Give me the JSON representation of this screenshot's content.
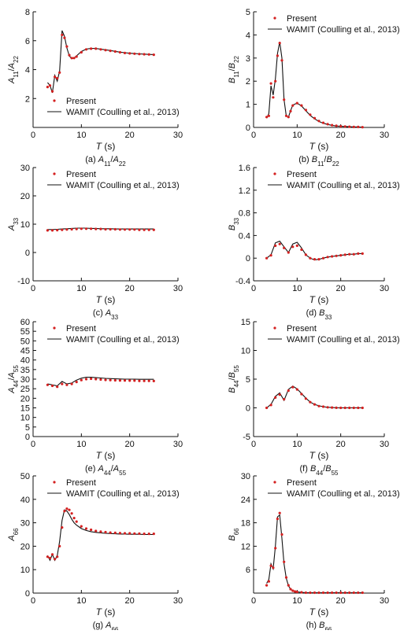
{
  "figure": {
    "legend": {
      "present": "Present",
      "wamit": "WAMIT (Coulling et al., 2013)"
    },
    "colors": {
      "present": "#d42020",
      "wamit": "#111111",
      "axis": "#111111"
    }
  },
  "chart_data": [
    {
      "id": "a",
      "type": "line",
      "caption": {
        "prefix": "(a) ",
        "sym": "A",
        "sub": "11",
        "sep": "/",
        "sym2": "A",
        "sub2": "22"
      },
      "ylabel": {
        "sym": "A",
        "sub": "11",
        "sep": "/",
        "sym2": "A",
        "sub2": "22"
      },
      "xlabel": {
        "sym": "T",
        "unit": " (s)"
      },
      "xlim": [
        0,
        30
      ],
      "ylim": [
        0,
        8
      ],
      "xticks": [
        0,
        10,
        20,
        30
      ],
      "yticks": [
        2,
        4,
        6,
        8
      ],
      "legend_position": "bottom",
      "x": [
        3,
        3.5,
        4,
        4.5,
        5,
        5.5,
        6,
        6.5,
        7,
        7.5,
        8,
        8.5,
        9,
        10,
        11,
        12,
        13,
        14,
        15,
        16,
        17,
        18,
        19,
        20,
        21,
        22,
        23,
        24,
        25
      ],
      "series": [
        {
          "name": "Present",
          "style": "markers",
          "values": [
            2.8,
            2.9,
            2.5,
            3.5,
            3.4,
            3.8,
            6.4,
            6.2,
            5.6,
            5.0,
            4.8,
            4.8,
            4.9,
            5.2,
            5.4,
            5.45,
            5.45,
            5.4,
            5.35,
            5.3,
            5.25,
            5.2,
            5.15,
            5.12,
            5.1,
            5.08,
            5.06,
            5.05,
            5.03
          ]
        },
        {
          "name": "WAMIT (Coulling et al., 2013)",
          "style": "line",
          "values": [
            3.1,
            2.9,
            2.4,
            3.6,
            3.2,
            3.9,
            6.7,
            6.3,
            5.5,
            4.95,
            4.75,
            4.8,
            4.95,
            5.25,
            5.42,
            5.47,
            5.46,
            5.42,
            5.37,
            5.32,
            5.26,
            5.21,
            5.17,
            5.13,
            5.11,
            5.09,
            5.07,
            5.05,
            5.04
          ]
        }
      ]
    },
    {
      "id": "b",
      "type": "line",
      "caption": {
        "prefix": "(b) ",
        "sym": "B",
        "sub": "11",
        "sep": "/",
        "sym2": "B",
        "sub2": "22"
      },
      "ylabel": {
        "sym": "B",
        "sub": "11",
        "sep": "/",
        "sym2": "B",
        "sub2": "22"
      },
      "xlabel": {
        "sym": "T",
        "unit": " (s)"
      },
      "xlim": [
        0,
        30
      ],
      "ylim": [
        0,
        5
      ],
      "xticks": [
        0,
        10,
        20,
        30
      ],
      "yticks": [
        0,
        1,
        2,
        3,
        4,
        5
      ],
      "legend_position": "top",
      "x": [
        3,
        3.5,
        4,
        4.5,
        5,
        5.5,
        6,
        6.5,
        7,
        7.5,
        8,
        8.5,
        9,
        10,
        11,
        12,
        13,
        14,
        15,
        16,
        17,
        18,
        19,
        20,
        21,
        22,
        23,
        24,
        25
      ],
      "series": [
        {
          "name": "Present",
          "style": "markers",
          "values": [
            0.45,
            0.5,
            1.9,
            1.3,
            2.0,
            3.1,
            3.65,
            2.9,
            1.2,
            0.5,
            0.45,
            0.7,
            0.95,
            1.05,
            0.95,
            0.75,
            0.55,
            0.4,
            0.28,
            0.2,
            0.14,
            0.1,
            0.07,
            0.05,
            0.04,
            0.03,
            0.02,
            0.02,
            0.01
          ]
        },
        {
          "name": "WAMIT (Coulling et al., 2013)",
          "style": "line",
          "values": [
            0.4,
            0.6,
            1.8,
            1.4,
            2.1,
            3.2,
            3.7,
            3.0,
            1.2,
            0.5,
            0.45,
            0.72,
            0.97,
            1.05,
            0.93,
            0.72,
            0.52,
            0.37,
            0.26,
            0.18,
            0.13,
            0.09,
            0.06,
            0.05,
            0.04,
            0.03,
            0.02,
            0.02,
            0.01
          ]
        }
      ]
    },
    {
      "id": "c",
      "type": "line",
      "caption": {
        "prefix": "(c) ",
        "sym": "A",
        "sub": "33",
        "sep": "",
        "sym2": "",
        "sub2": ""
      },
      "ylabel": {
        "sym": "A",
        "sub": "33",
        "sep": "",
        "sym2": "",
        "sub2": ""
      },
      "xlabel": {
        "sym": "T",
        "unit": " (s)"
      },
      "xlim": [
        0,
        30
      ],
      "ylim": [
        -10,
        30
      ],
      "xticks": [
        0,
        10,
        20,
        30
      ],
      "yticks": [
        -10,
        0,
        10,
        20,
        30
      ],
      "legend_position": "top",
      "x": [
        3,
        4,
        5,
        6,
        7,
        8,
        9,
        10,
        11,
        12,
        13,
        14,
        15,
        16,
        17,
        18,
        19,
        20,
        21,
        22,
        23,
        24,
        25
      ],
      "series": [
        {
          "name": "Present",
          "style": "markers",
          "values": [
            7.8,
            7.8,
            7.9,
            8.0,
            8.1,
            8.2,
            8.3,
            8.4,
            8.4,
            8.4,
            8.3,
            8.3,
            8.2,
            8.2,
            8.2,
            8.1,
            8.1,
            8.1,
            8.1,
            8.0,
            8.0,
            8.0,
            8.0
          ]
        },
        {
          "name": "WAMIT (Coulling et al., 2013)",
          "style": "line",
          "values": [
            8.1,
            8.1,
            8.2,
            8.3,
            8.4,
            8.5,
            8.6,
            8.6,
            8.6,
            8.5,
            8.5,
            8.4,
            8.4,
            8.4,
            8.3,
            8.3,
            8.3,
            8.3,
            8.3,
            8.3,
            8.3,
            8.3,
            8.3
          ]
        }
      ]
    },
    {
      "id": "d",
      "type": "line",
      "caption": {
        "prefix": "(d) ",
        "sym": "B",
        "sub": "33",
        "sep": "",
        "sym2": "",
        "sub2": ""
      },
      "ylabel": {
        "sym": "B",
        "sub": "33",
        "sep": "",
        "sym2": "",
        "sub2": ""
      },
      "xlabel": {
        "sym": "T",
        "unit": " (s)"
      },
      "xlim": [
        0,
        30
      ],
      "ylim": [
        -0.4,
        1.6
      ],
      "xticks": [
        0,
        10,
        20,
        30
      ],
      "yticks": [
        -0.4,
        0.0,
        0.4,
        0.8,
        1.2,
        1.6
      ],
      "legend_position": "top",
      "x": [
        3,
        4,
        5,
        6,
        7,
        8,
        9,
        10,
        11,
        12,
        13,
        14,
        15,
        16,
        17,
        18,
        19,
        20,
        21,
        22,
        23,
        24,
        25
      ],
      "series": [
        {
          "name": "Present",
          "style": "markers",
          "values": [
            0.0,
            0.05,
            0.22,
            0.25,
            0.18,
            0.1,
            0.2,
            0.22,
            0.15,
            0.06,
            0.0,
            -0.02,
            -0.02,
            0.0,
            0.02,
            0.03,
            0.04,
            0.05,
            0.06,
            0.07,
            0.07,
            0.08,
            0.08
          ]
        },
        {
          "name": "WAMIT (Coulling et al., 2013)",
          "style": "line",
          "values": [
            0.0,
            0.06,
            0.27,
            0.3,
            0.2,
            0.1,
            0.25,
            0.28,
            0.18,
            0.06,
            0.0,
            -0.03,
            -0.02,
            0.0,
            0.02,
            0.03,
            0.04,
            0.05,
            0.06,
            0.07,
            0.07,
            0.08,
            0.08
          ]
        }
      ]
    },
    {
      "id": "e",
      "type": "line",
      "caption": {
        "prefix": "(e) ",
        "sym": "A",
        "sub": "44",
        "sep": "/",
        "sym2": "A",
        "sub2": "55"
      },
      "ylabel": {
        "sym": "A",
        "sub": "44",
        "sep": "/",
        "sym2": "A",
        "sub2": "55"
      },
      "xlabel": {
        "sym": "T",
        "unit": " (s)"
      },
      "xlim": [
        0,
        30
      ],
      "ylim": [
        0,
        60
      ],
      "xticks": [
        0,
        10,
        20,
        30
      ],
      "yticks": [
        0,
        5,
        10,
        15,
        20,
        25,
        30,
        35,
        40,
        45,
        50,
        55,
        60
      ],
      "legend_position": "top",
      "x": [
        3,
        4,
        5,
        6,
        7,
        8,
        9,
        10,
        11,
        12,
        13,
        14,
        15,
        16,
        17,
        18,
        19,
        20,
        21,
        22,
        23,
        24,
        25
      ],
      "series": [
        {
          "name": "Present",
          "style": "markers",
          "values": [
            27.0,
            26.5,
            26.0,
            27.5,
            27.0,
            27.5,
            28.5,
            29.5,
            30.0,
            30.2,
            30.0,
            29.8,
            29.6,
            29.5,
            29.4,
            29.3,
            29.3,
            29.2,
            29.2,
            29.1,
            29.1,
            29.1,
            29.0
          ]
        },
        {
          "name": "WAMIT (Coulling et al., 2013)",
          "style": "line",
          "values": [
            27.5,
            27.0,
            26.5,
            28.8,
            27.5,
            28.0,
            29.5,
            30.5,
            31.0,
            31.0,
            30.8,
            30.6,
            30.4,
            30.3,
            30.2,
            30.1,
            30.0,
            30.0,
            30.0,
            29.9,
            29.9,
            29.9,
            29.9
          ]
        }
      ]
    },
    {
      "id": "f",
      "type": "line",
      "caption": {
        "prefix": "(f) ",
        "sym": "B",
        "sub": "44",
        "sep": "/",
        "sym2": "B",
        "sub2": "55"
      },
      "ylabel": {
        "sym": "B",
        "sub": "44",
        "sep": "/",
        "sym2": "B",
        "sub2": "55"
      },
      "xlabel": {
        "sym": "T",
        "unit": " (s)"
      },
      "xlim": [
        0,
        30
      ],
      "ylim": [
        -5,
        15
      ],
      "xticks": [
        0,
        10,
        20,
        30
      ],
      "yticks": [
        -5,
        0,
        5,
        10,
        15
      ],
      "legend_position": "top",
      "x": [
        3,
        4,
        5,
        6,
        7,
        8,
        9,
        10,
        11,
        12,
        13,
        14,
        15,
        16,
        17,
        18,
        19,
        20,
        21,
        22,
        23,
        24,
        25
      ],
      "series": [
        {
          "name": "Present",
          "style": "markers",
          "values": [
            0.0,
            0.5,
            1.8,
            2.3,
            1.5,
            3.0,
            3.6,
            3.2,
            2.4,
            1.6,
            1.0,
            0.6,
            0.3,
            0.2,
            0.1,
            0.05,
            0.02,
            0.0,
            0.0,
            0.0,
            0.0,
            0.0,
            0.0
          ]
        },
        {
          "name": "WAMIT (Coulling et al., 2013)",
          "style": "line",
          "values": [
            0.0,
            0.6,
            2.0,
            2.6,
            1.3,
            3.2,
            3.8,
            3.3,
            2.5,
            1.7,
            1.0,
            0.6,
            0.35,
            0.2,
            0.1,
            0.05,
            0.02,
            0.0,
            0.0,
            0.0,
            0.0,
            0.0,
            0.0
          ]
        }
      ]
    },
    {
      "id": "g",
      "type": "line",
      "caption": {
        "prefix": "(g) ",
        "sym": "A",
        "sub": "66",
        "sep": "",
        "sym2": "",
        "sub2": ""
      },
      "ylabel": {
        "sym": "A",
        "sub": "66",
        "sep": "",
        "sym2": "",
        "sub2": ""
      },
      "xlabel": {
        "sym": "T",
        "unit": " (s)"
      },
      "xlim": [
        0,
        30
      ],
      "ylim": [
        0,
        50
      ],
      "xticks": [
        0,
        10,
        20,
        30
      ],
      "yticks": [
        0,
        10,
        20,
        30,
        40,
        50
      ],
      "legend_position": "top",
      "x": [
        3,
        3.5,
        4,
        4.5,
        5,
        5.5,
        6,
        6.5,
        7,
        7.5,
        8,
        8.5,
        9,
        10,
        11,
        12,
        13,
        14,
        15,
        16,
        17,
        18,
        19,
        20,
        21,
        22,
        23,
        24,
        25
      ],
      "series": [
        {
          "name": "Present",
          "style": "markers",
          "values": [
            15.5,
            15.0,
            16.5,
            14.5,
            15.5,
            20.0,
            28.0,
            35.0,
            36.0,
            35.5,
            34.0,
            32.0,
            30.5,
            28.5,
            27.5,
            27.0,
            26.5,
            26.2,
            26.0,
            25.8,
            25.7,
            25.6,
            25.5,
            25.5,
            25.4,
            25.4,
            25.3,
            25.3,
            25.3
          ]
        },
        {
          "name": "WAMIT (Coulling et al., 2013)",
          "style": "line",
          "values": [
            16.0,
            14.0,
            16.5,
            14.0,
            16.0,
            22.0,
            31.0,
            35.5,
            35.0,
            33.5,
            31.5,
            30.0,
            29.0,
            27.5,
            26.7,
            26.2,
            25.9,
            25.7,
            25.5,
            25.4,
            25.3,
            25.2,
            25.2,
            25.1,
            25.1,
            25.1,
            25.0,
            25.0,
            25.0
          ]
        }
      ]
    },
    {
      "id": "h",
      "type": "line",
      "caption": {
        "prefix": "(h) ",
        "sym": "B",
        "sub": "66",
        "sep": "",
        "sym2": "",
        "sub2": ""
      },
      "ylabel": {
        "sym": "B",
        "sub": "66",
        "sep": "",
        "sym2": "",
        "sub2": ""
      },
      "xlabel": {
        "sym": "T",
        "unit": " (s)"
      },
      "xlim": [
        0,
        30
      ],
      "ylim": [
        0,
        30
      ],
      "xticks": [
        0,
        10,
        20,
        30
      ],
      "yticks": [
        6,
        12,
        18,
        24,
        30
      ],
      "legend_position": "top",
      "x": [
        3,
        3.5,
        4,
        4.5,
        5,
        5.5,
        6,
        6.5,
        7,
        7.5,
        8,
        8.5,
        9,
        9.5,
        10,
        11,
        12,
        13,
        14,
        15,
        16,
        17,
        18,
        19,
        20,
        21,
        22,
        23,
        24,
        25
      ],
      "series": [
        {
          "name": "Present",
          "style": "markers",
          "values": [
            2.0,
            3.0,
            7.0,
            6.5,
            11.5,
            19.0,
            20.5,
            15.0,
            8.0,
            4.0,
            2.0,
            1.0,
            0.6,
            0.4,
            0.3,
            0.2,
            0.1,
            0.1,
            0.1,
            0.1,
            0.1,
            0.1,
            0.1,
            0.1,
            0.1,
            0.1,
            0.1,
            0.1,
            0.1,
            0.1
          ]
        },
        {
          "name": "WAMIT (Coulling et al., 2013)",
          "style": "line",
          "values": [
            2.5,
            3.5,
            7.5,
            6.2,
            12.0,
            19.5,
            20.0,
            14.0,
            7.5,
            3.8,
            1.9,
            1.0,
            0.6,
            0.4,
            0.3,
            0.2,
            0.1,
            0.1,
            0.1,
            0.1,
            0.1,
            0.1,
            0.1,
            0.1,
            0.1,
            0.1,
            0.1,
            0.1,
            0.1,
            0.1
          ]
        }
      ]
    }
  ]
}
